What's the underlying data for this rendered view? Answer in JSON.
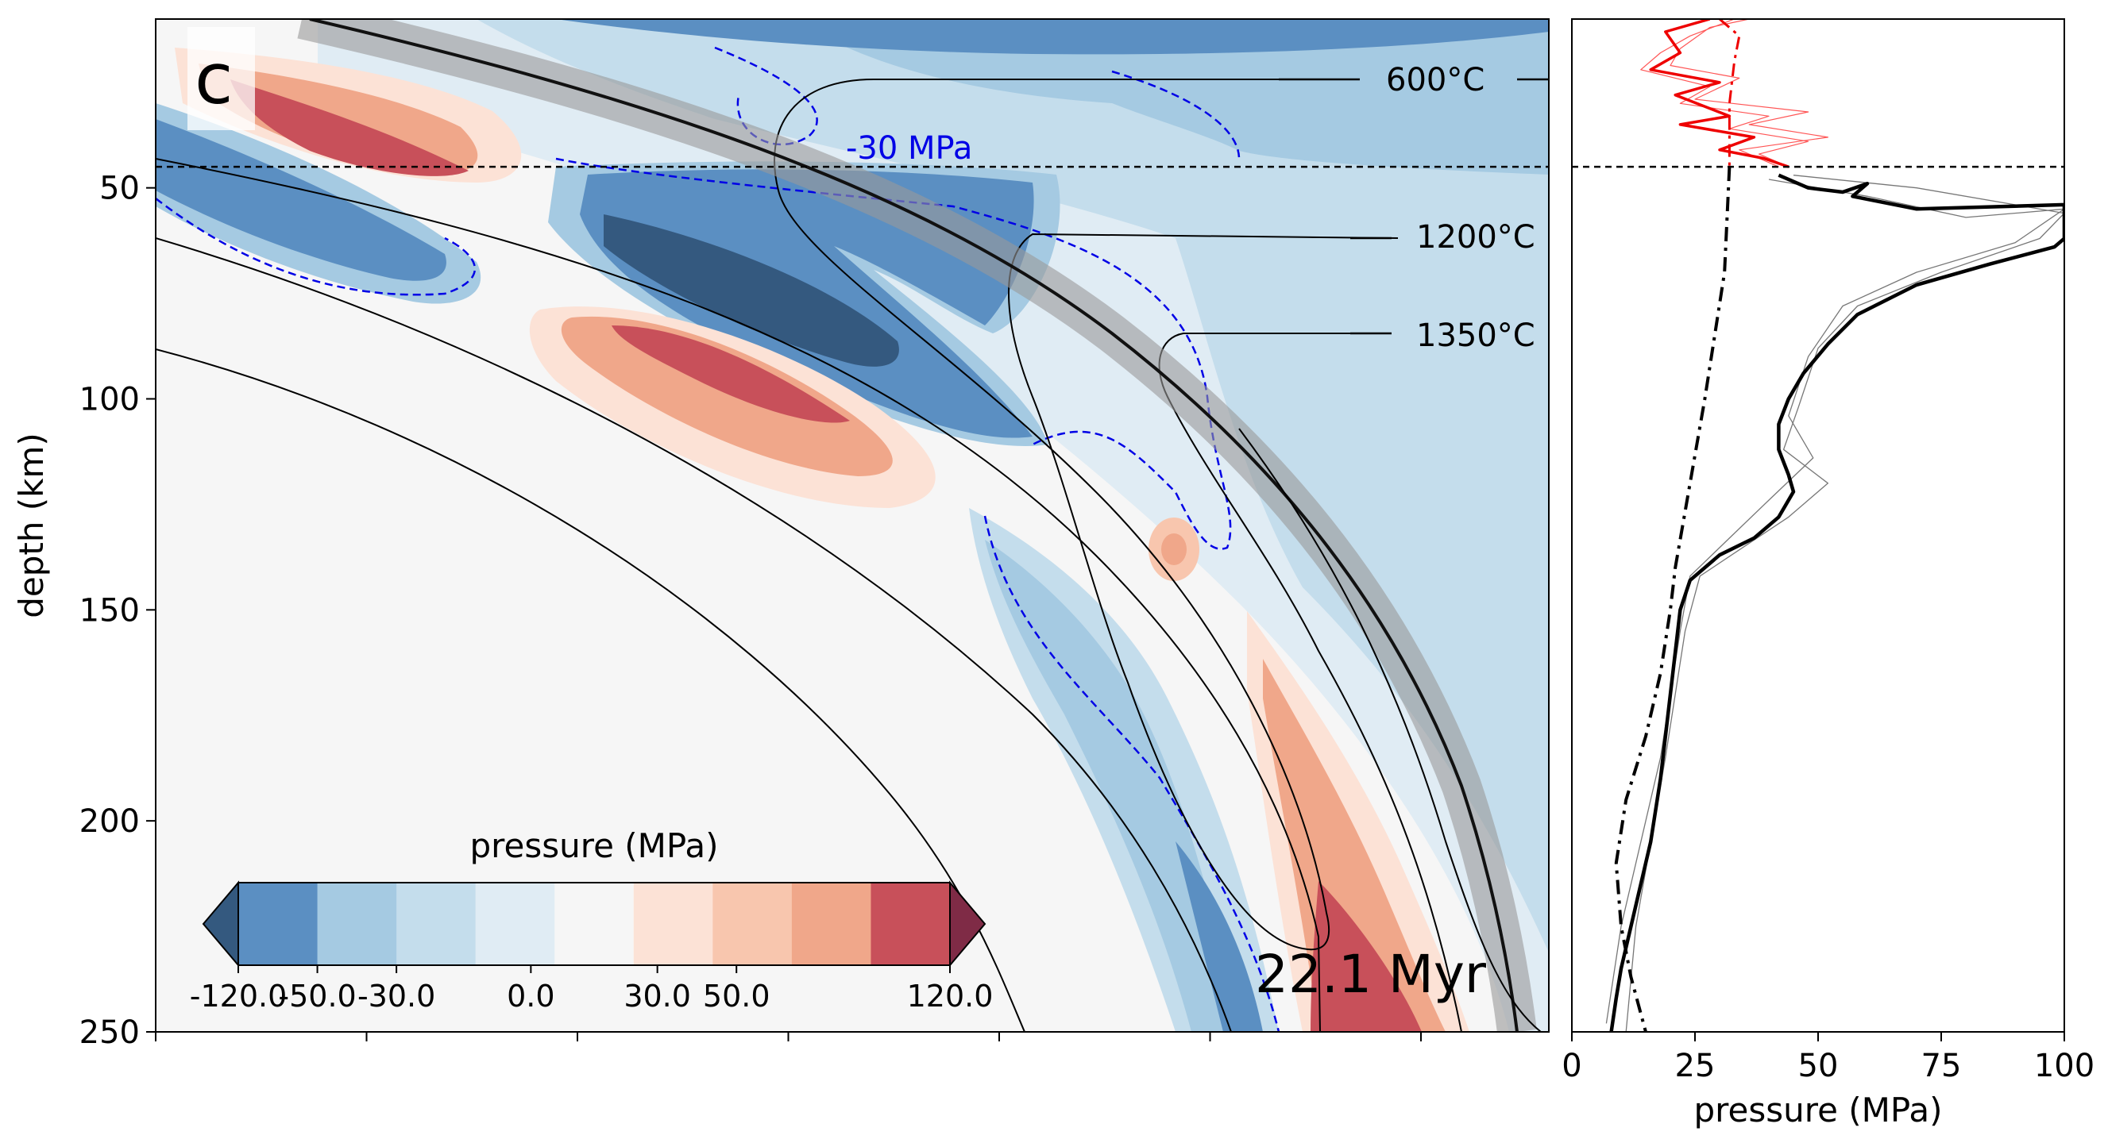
{
  "chart_data": [
    {
      "type": "heatmap",
      "panel_label": "c",
      "ylabel": "depth (km)",
      "ylim": [
        250,
        10
      ],
      "y_ticks": [
        50,
        100,
        150,
        200,
        250
      ],
      "dashed_reference_depth": 45,
      "time_label": "22.1 Myr",
      "contour_label": "-30 MPa",
      "isotherms": [
        {
          "label": "600°C",
          "value": 600
        },
        {
          "label": "1200°C",
          "value": 1200
        },
        {
          "label": "1350°C",
          "value": 1350
        }
      ],
      "colorbar": {
        "title": "pressure (MPa)",
        "tick_labels": [
          "-120.0",
          "-50.0",
          "-30.0",
          "0.0",
          "30.0",
          "50.0",
          "120.0"
        ],
        "colors": [
          "#34597f",
          "#5b8fc2",
          "#a5cae2",
          "#c4ddec",
          "#e0ecf4",
          "#f6f6f6",
          "#fce2d6",
          "#f8c6ae",
          "#f0a78a",
          "#c8505a",
          "#7f2b46"
        ]
      }
    },
    {
      "type": "line",
      "xlabel": "pressure (MPa)",
      "xlim": [
        0,
        100
      ],
      "ylim": [
        250,
        10
      ],
      "x_ticks": [
        0,
        25,
        50,
        75,
        100
      ],
      "dashed_reference_depth": 45,
      "series": [
        {
          "style": "black-bold",
          "x": [
            42,
            48,
            55,
            60,
            57,
            70,
            100,
            100,
            100,
            98,
            85,
            70,
            58,
            52,
            47,
            44,
            42,
            42,
            44,
            45,
            42,
            37,
            30,
            24,
            22,
            21,
            20,
            19,
            18,
            16,
            14,
            12,
            10,
            9,
            8
          ],
          "y": [
            47,
            50,
            51,
            49,
            52,
            55,
            54,
            58,
            62,
            64,
            68,
            73,
            80,
            87,
            94,
            100,
            106,
            112,
            118,
            122,
            128,
            133,
            137,
            143,
            150,
            160,
            170,
            180,
            190,
            205,
            215,
            225,
            235,
            242,
            250
          ]
        },
        {
          "style": "black-dashdot",
          "x": [
            32,
            31,
            29,
            27,
            24,
            21,
            20,
            18,
            15,
            11,
            9,
            10,
            12,
            15
          ],
          "y": [
            45,
            70,
            85,
            100,
            120,
            140,
            150,
            165,
            180,
            195,
            210,
            225,
            237,
            250
          ]
        },
        {
          "style": "red-dashdot",
          "x": [
            30,
            34,
            33,
            32,
            32
          ],
          "y": [
            10,
            14,
            20,
            30,
            45
          ]
        },
        {
          "style": "red-bold",
          "x": [
            28,
            19,
            22,
            16,
            30,
            21,
            32,
            22,
            37,
            30,
            39,
            44
          ],
          "y": [
            10,
            13,
            18,
            22,
            25,
            28,
            33,
            35,
            38,
            41,
            43,
            45
          ]
        },
        {
          "style": "gray-thin",
          "x": [
            40,
            60,
            80,
            100,
            90,
            70,
            55,
            48,
            44,
            49,
            40,
            32,
            24,
            22,
            20,
            18,
            14,
            10,
            7
          ],
          "y": [
            48,
            52,
            57,
            55,
            63,
            70,
            78,
            90,
            104,
            114,
            124,
            133,
            142,
            155,
            170,
            185,
            205,
            225,
            248
          ]
        },
        {
          "style": "gray-thin",
          "x": [
            45,
            70,
            100,
            95,
            75,
            58,
            50,
            46,
            43,
            52,
            44,
            35,
            26,
            23,
            21,
            19,
            16,
            13,
            11
          ],
          "y": [
            47,
            50,
            56,
            62,
            70,
            78,
            88,
            102,
            112,
            120,
            128,
            135,
            142,
            155,
            170,
            185,
            205,
            225,
            250
          ]
        },
        {
          "style": "red-thin",
          "x": [
            33,
            24,
            18,
            14,
            28,
            22,
            40,
            32,
            48,
            38,
            44
          ],
          "y": [
            10,
            14,
            18,
            22,
            26,
            30,
            33,
            36,
            39,
            42,
            45
          ]
        },
        {
          "style": "red-thin",
          "x": [
            36,
            28,
            22,
            20,
            34,
            25,
            48,
            36,
            52,
            34,
            42
          ],
          "y": [
            10,
            12,
            17,
            21,
            24,
            29,
            32,
            35,
            38,
            41,
            45
          ]
        }
      ]
    }
  ]
}
